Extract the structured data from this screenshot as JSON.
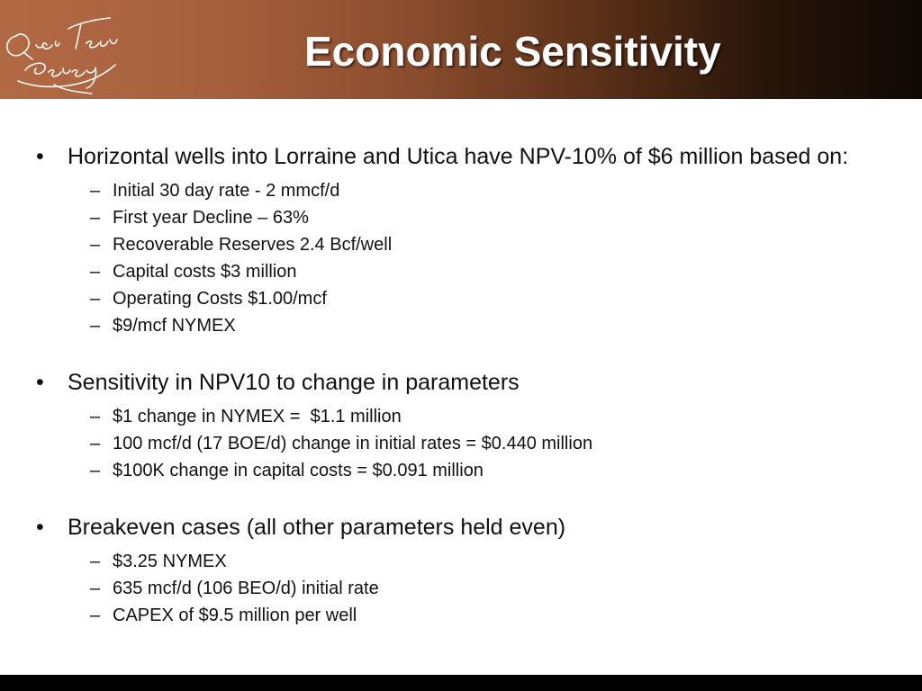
{
  "slide": {
    "title": "Economic Sensitivity",
    "logo": {
      "text_line1": "QuesTerre",
      "text_line2": "Energy"
    },
    "bullets": [
      {
        "text": "Horizontal wells into Lorraine and Utica have NPV-10% of $6 million based on:",
        "subs": [
          "Initial 30 day rate - 2 mmcf/d",
          "First year Decline – 63%",
          "Recoverable Reserves 2.4 Bcf/well",
          "Capital costs $3 million",
          "Operating Costs $1.00/mcf",
          "$9/mcf NYMEX"
        ]
      },
      {
        "text": "Sensitivity in NPV10 to change in parameters",
        "subs": [
          "$1 change in NYMEX =  $1.1 million",
          "100 mcf/d (17 BOE/d) change in initial rates = $0.440 million",
          "$100K change in capital costs = $0.091 million"
        ]
      },
      {
        "text": "Breakeven cases (all other parameters held even)",
        "subs": [
          "$3.25 NYMEX",
          "635 mcf/d (106 BEO/d) initial rate",
          "CAPEX of $9.5 million per well"
        ]
      }
    ]
  }
}
